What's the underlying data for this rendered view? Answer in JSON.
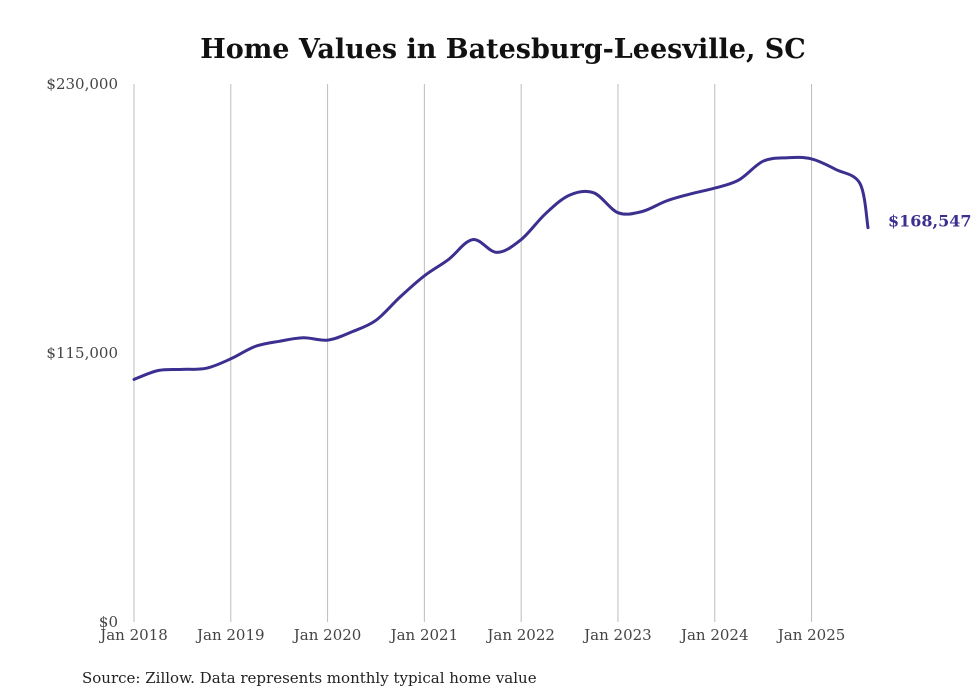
{
  "chart_data": {
    "type": "line",
    "title": "Home Values in Batesburg-Leesville, SC",
    "source": "Source: Zillow. Data represents monthly typical home value",
    "ylim": [
      0,
      230000
    ],
    "y_ticks": [
      {
        "value": 0,
        "label": "$0"
      },
      {
        "value": 115000,
        "label": "$115,000"
      },
      {
        "value": 230000,
        "label": "$230,000"
      }
    ],
    "x_ticks": [
      "Jan 2018",
      "Jan 2019",
      "Jan 2020",
      "Jan 2021",
      "Jan 2022",
      "Jan 2023",
      "Jan 2024",
      "Jan 2025"
    ],
    "grid": "vertical",
    "end_label": "$168,547",
    "colors": {
      "line": "#3b2f8f",
      "end_label": "#3b2f8f"
    },
    "series": [
      {
        "x": [
          "2018-01",
          "2018-04",
          "2018-07",
          "2018-10",
          "2019-01",
          "2019-04",
          "2019-07",
          "2019-10",
          "2020-01",
          "2020-04",
          "2020-07",
          "2020-10",
          "2021-01",
          "2021-04",
          "2021-07",
          "2021-10",
          "2022-01",
          "2022-04",
          "2022-07",
          "2022-10",
          "2023-01",
          "2023-04",
          "2023-07",
          "2023-10",
          "2024-01",
          "2024-04",
          "2024-07",
          "2024-10",
          "2025-01",
          "2025-04",
          "2025-07",
          "2025-08"
        ],
        "values": [
          103700,
          107500,
          108000,
          108500,
          112500,
          117800,
          120000,
          121500,
          120500,
          124000,
          129000,
          139000,
          148000,
          155000,
          163500,
          158000,
          163500,
          174500,
          182500,
          183500,
          175000,
          175500,
          180000,
          183000,
          185500,
          189000,
          197000,
          198500,
          198000,
          193500,
          187500,
          168547
        ]
      }
    ]
  }
}
